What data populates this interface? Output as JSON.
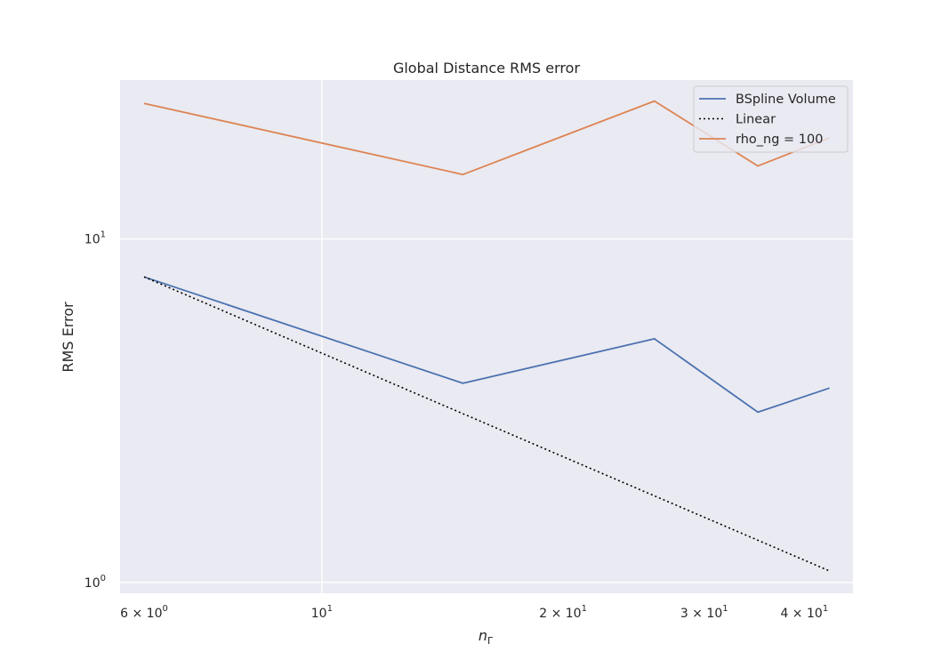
{
  "chart_data": {
    "type": "line",
    "title": "Global Distance RMS error",
    "xlabel": "n_Γ",
    "ylabel": "RMS Error",
    "xscale": "log",
    "yscale": "log",
    "xlim": [
      5.6,
      46
    ],
    "ylim": [
      0.93,
      29
    ],
    "grid": true,
    "legend_position": "top-right",
    "x_ticks": [
      {
        "value": 6,
        "mantissa": "6",
        "base": "10",
        "exp": "0"
      },
      {
        "value": 10,
        "mantissa": "",
        "base": "10",
        "exp": "1"
      },
      {
        "value": 20,
        "mantissa": "2",
        "base": "10",
        "exp": "1"
      },
      {
        "value": 30,
        "mantissa": "3",
        "base": "10",
        "exp": "1"
      },
      {
        "value": 40,
        "mantissa": "4",
        "base": "10",
        "exp": "1"
      }
    ],
    "y_ticks": [
      {
        "value": 1,
        "base": "10",
        "exp": "0"
      },
      {
        "value": 10,
        "base": "10",
        "exp": "1"
      }
    ],
    "series": [
      {
        "name": "BSpline Volume",
        "color": "#4c72b0",
        "dash": "solid",
        "x": [
          6,
          15,
          26,
          35,
          43
        ],
        "y": [
          7.75,
          3.8,
          5.12,
          3.13,
          3.68
        ]
      },
      {
        "name": "Linear",
        "color": "#000000",
        "dash": "dotted",
        "x": [
          6,
          43
        ],
        "y": [
          7.75,
          1.08
        ]
      },
      {
        "name": "rho_ng = 100",
        "color": "#dd8452",
        "dash": "solid",
        "x": [
          6,
          15,
          26,
          35,
          43
        ],
        "y": [
          24.8,
          15.4,
          25.2,
          16.3,
          19.7
        ]
      }
    ]
  }
}
